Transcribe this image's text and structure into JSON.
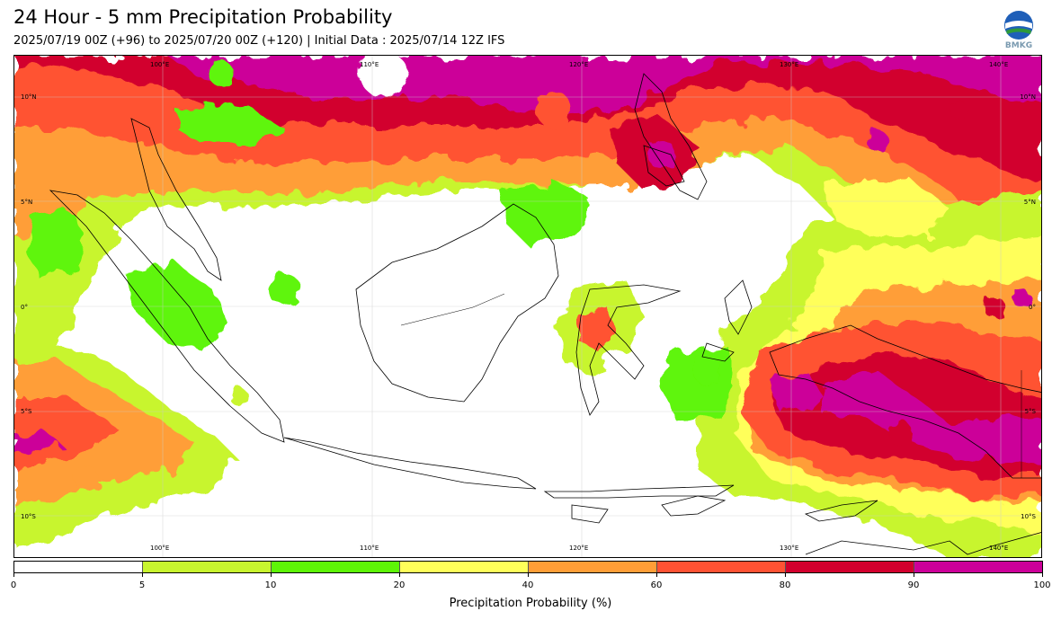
{
  "header": {
    "title": "24 Hour - 5 mm Precipitation Probability",
    "subtitle": "2025/07/19 00Z (+96) to 2025/07/20 00Z (+120) | Initial Data : 2025/07/14 12Z IFS",
    "logo_text": "BMKG"
  },
  "map": {
    "lon_labels": [
      "100°E",
      "110°E",
      "120°E",
      "130°E",
      "140°E"
    ],
    "lat_labels": [
      "10°N",
      "5°N",
      "0°",
      "5°S",
      "10°S"
    ],
    "lon_range": [
      93,
      142
    ],
    "lat_range": [
      -11,
      13
    ]
  },
  "legend": {
    "title": "Precipitation Probability (%)",
    "ticks": [
      "0",
      "5",
      "10",
      "20",
      "40",
      "60",
      "80",
      "90",
      "100"
    ],
    "colors": [
      "#ffffff",
      "#c8f52f",
      "#5ef507",
      "#ffff5a",
      "#ff9e37",
      "#ff5233",
      "#d2002d",
      "#cc0099"
    ]
  }
}
